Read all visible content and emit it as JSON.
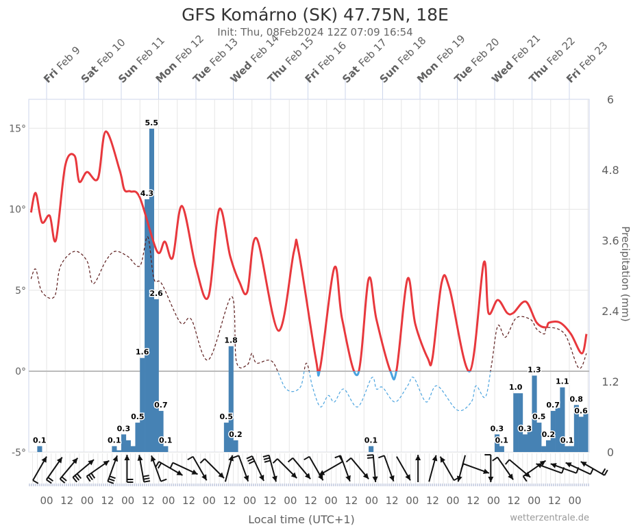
{
  "title": "GFS Komárno (SK) 47.75N, 18E",
  "subtitle": "Init: Thu, 08Feb2024 12Z 07:09 16:54",
  "credit": "wetterzentrale.de",
  "chart_data": {
    "type": "line",
    "xlabel": "Local time (UTC+1)",
    "top_axis_labels": [
      {
        "weekday": "Fri",
        "date": "Feb 9"
      },
      {
        "weekday": "Sat",
        "date": "Feb 10"
      },
      {
        "weekday": "Sun",
        "date": "Feb 11"
      },
      {
        "weekday": "Mon",
        "date": "Feb 12"
      },
      {
        "weekday": "Tue",
        "date": "Feb 13"
      },
      {
        "weekday": "Wed",
        "date": "Feb 14"
      },
      {
        "weekday": "Thu",
        "date": "Feb 15"
      },
      {
        "weekday": "Fri",
        "date": "Feb 16"
      },
      {
        "weekday": "Sat",
        "date": "Feb 17"
      },
      {
        "weekday": "Sun",
        "date": "Feb 18"
      },
      {
        "weekday": "Mon",
        "date": "Feb 19"
      },
      {
        "weekday": "Tue",
        "date": "Feb 20"
      },
      {
        "weekday": "Wed",
        "date": "Feb 21"
      },
      {
        "weekday": "Thu",
        "date": "Feb 22"
      },
      {
        "weekday": "Fri",
        "date": "Feb 23"
      }
    ],
    "bottom_tick_labels": [
      "00",
      "12",
      "00",
      "12",
      "00",
      "12",
      "00",
      "12",
      "00",
      "12",
      "00",
      "12",
      "00",
      "12",
      "00",
      "12",
      "00",
      "12",
      "00",
      "12",
      "00",
      "12",
      "00",
      "12",
      "00",
      "12",
      "00"
    ],
    "y_left": {
      "ticks": [
        "15°",
        "10°",
        "5°",
        "0°",
        "-5°"
      ],
      "values": [
        15,
        10,
        5,
        0,
        -5
      ],
      "range": [
        -5,
        16.8
      ]
    },
    "y_right": {
      "label": "Precipitation (mm)",
      "ticks": [
        "6",
        "4.8",
        "3.6",
        "2.4",
        "1.2",
        "0"
      ],
      "values": [
        6,
        4.8,
        3.6,
        2.4,
        1.2,
        0
      ],
      "range": [
        0,
        6
      ]
    },
    "grid": true,
    "colors": {
      "temperature": "#e8383d",
      "dewpoint": "#5a1a1a",
      "below_zero": "#4aa3df",
      "precipitation": "#4682b4"
    },
    "temperature": [
      [
        "2024-02-08T14",
        9.8
      ],
      [
        "2024-02-08T17",
        11.0
      ],
      [
        "2024-02-08T21",
        9.2
      ],
      [
        "2024-02-09T02",
        9.6
      ],
      [
        "2024-02-09T06",
        8.1
      ],
      [
        "2024-02-09T12",
        12.7
      ],
      [
        "2024-02-09T18",
        13.3
      ],
      [
        "2024-02-09T21",
        11.7
      ],
      [
        "2024-02-10T02",
        12.3
      ],
      [
        "2024-02-10T09",
        11.9
      ],
      [
        "2024-02-10T14",
        14.8
      ],
      [
        "2024-02-10T23",
        12.4
      ],
      [
        "2024-02-11T02",
        11.2
      ],
      [
        "2024-02-11T06",
        11.1
      ],
      [
        "2024-02-11T12",
        10.7
      ],
      [
        "2024-02-11T23",
        7.4
      ],
      [
        "2024-02-12T04",
        8.0
      ],
      [
        "2024-02-12T09",
        7.0
      ],
      [
        "2024-02-12T15",
        10.2
      ],
      [
        "2024-02-13T00",
        6.4
      ],
      [
        "2024-02-13T08",
        4.6
      ],
      [
        "2024-02-13T15",
        10.0
      ],
      [
        "2024-02-13T22",
        7.1
      ],
      [
        "2024-02-14T04",
        5.5
      ],
      [
        "2024-02-14T09",
        4.9
      ],
      [
        "2024-02-14T15",
        8.2
      ],
      [
        "2024-02-15T05",
        2.5
      ],
      [
        "2024-02-15T15",
        7.4
      ],
      [
        "2024-02-15T18",
        7.4
      ],
      [
        "2024-02-16T05",
        0.8
      ],
      [
        "2024-02-16T08",
        0.3
      ],
      [
        "2024-02-16T17",
        6.4
      ],
      [
        "2024-02-16T22",
        3.2
      ],
      [
        "2024-02-17T08",
        -0.2
      ],
      [
        "2024-02-17T15",
        5.7
      ],
      [
        "2024-02-17T20",
        3.2
      ],
      [
        "2024-02-18T05",
        0.0
      ],
      [
        "2024-02-18T09",
        0.1
      ],
      [
        "2024-02-18T16",
        5.7
      ],
      [
        "2024-02-18T21",
        2.9
      ],
      [
        "2024-02-19T05",
        0.8
      ],
      [
        "2024-02-19T08",
        0.8
      ],
      [
        "2024-02-19T14",
        5.5
      ],
      [
        "2024-02-19T19",
        5.1
      ],
      [
        "2024-02-20T08",
        0.0
      ],
      [
        "2024-02-20T17",
        6.7
      ],
      [
        "2024-02-20T20",
        3.6
      ],
      [
        "2024-02-21T02",
        4.4
      ],
      [
        "2024-02-21T08",
        3.6
      ],
      [
        "2024-02-21T12",
        3.6
      ],
      [
        "2024-02-21T20",
        4.3
      ],
      [
        "2024-02-22T03",
        3.0
      ],
      [
        "2024-02-22T09",
        2.7
      ],
      [
        "2024-02-22T11",
        3.0
      ],
      [
        "2024-02-22T18",
        3.0
      ],
      [
        "2024-02-23T01",
        2.3
      ],
      [
        "2024-02-23T08",
        1.1
      ],
      [
        "2024-02-23T11",
        2.3
      ]
    ],
    "dewpoint": [
      [
        "2024-02-08T14",
        5.7
      ],
      [
        "2024-02-08T17",
        6.3
      ],
      [
        "2024-02-08T21",
        4.9
      ],
      [
        "2024-02-09T05",
        4.6
      ],
      [
        "2024-02-09T09",
        6.5
      ],
      [
        "2024-02-09T18",
        7.4
      ],
      [
        "2024-02-10T02",
        6.8
      ],
      [
        "2024-02-10T06",
        5.4
      ],
      [
        "2024-02-10T14",
        6.8
      ],
      [
        "2024-02-10T20",
        7.4
      ],
      [
        "2024-02-11T04",
        7.1
      ],
      [
        "2024-02-11T12",
        6.5
      ],
      [
        "2024-02-11T17",
        8.3
      ],
      [
        "2024-02-11T21",
        5.7
      ],
      [
        "2024-02-12T02",
        5.4
      ],
      [
        "2024-02-12T14",
        3.0
      ],
      [
        "2024-02-12T21",
        3.2
      ],
      [
        "2024-02-13T08",
        0.7
      ],
      [
        "2024-02-13T23",
        4.6
      ],
      [
        "2024-02-14T02",
        0.6
      ],
      [
        "2024-02-14T09",
        0.4
      ],
      [
        "2024-02-14T12",
        1.1
      ],
      [
        "2024-02-14T15",
        0.5
      ],
      [
        "2024-02-15T01",
        0.6
      ],
      [
        "2024-02-15T10",
        -1.1
      ],
      [
        "2024-02-15T19",
        -1.0
      ],
      [
        "2024-02-15T23",
        0.5
      ],
      [
        "2024-02-16T03",
        -1.0
      ],
      [
        "2024-02-16T08",
        -2.2
      ],
      [
        "2024-02-16T13",
        -1.5
      ],
      [
        "2024-02-16T17",
        -1.9
      ],
      [
        "2024-02-16T23",
        -1.1
      ],
      [
        "2024-02-17T08",
        -2.2
      ],
      [
        "2024-02-17T17",
        -0.4
      ],
      [
        "2024-02-17T20",
        -1.1
      ],
      [
        "2024-02-18T00",
        -1.0
      ],
      [
        "2024-02-18T08",
        -1.9
      ],
      [
        "2024-02-18T16",
        -0.9
      ],
      [
        "2024-02-18T20",
        -0.4
      ],
      [
        "2024-02-19T04",
        -1.9
      ],
      [
        "2024-02-19T11",
        -0.9
      ],
      [
        "2024-02-20T00",
        -2.4
      ],
      [
        "2024-02-20T09",
        -1.9
      ],
      [
        "2024-02-20T12",
        -0.9
      ],
      [
        "2024-02-20T18",
        -1.6
      ],
      [
        "2024-02-20T22",
        0.4
      ],
      [
        "2024-02-21T02",
        2.8
      ],
      [
        "2024-02-21T07",
        2.1
      ],
      [
        "2024-02-21T14",
        3.3
      ],
      [
        "2024-02-21T23",
        3.2
      ],
      [
        "2024-02-22T03",
        2.6
      ],
      [
        "2024-02-22T08",
        2.3
      ],
      [
        "2024-02-22T10",
        2.7
      ],
      [
        "2024-02-22T21",
        2.3
      ],
      [
        "2024-02-23T06",
        0.2
      ],
      [
        "2024-02-23T11",
        1.1
      ]
    ],
    "precipitation": [
      {
        "t": "2024-02-08T18",
        "v": 0.1,
        "label": "0.1"
      },
      {
        "t": "2024-02-10T18",
        "v": 0.1,
        "label": "0.1"
      },
      {
        "t": "2024-02-10T21",
        "v": 0.03,
        "label": ""
      },
      {
        "t": "2024-02-11T00",
        "v": 0.3,
        "label": "0.3"
      },
      {
        "t": "2024-02-11T03",
        "v": 0.2,
        "label": ""
      },
      {
        "t": "2024-02-11T06",
        "v": 0.1,
        "label": ""
      },
      {
        "t": "2024-02-11T09",
        "v": 0.5,
        "label": "0.5"
      },
      {
        "t": "2024-02-11T12",
        "v": 1.6,
        "label": "1.6"
      },
      {
        "t": "2024-02-11T15",
        "v": 4.3,
        "label": "4.3"
      },
      {
        "t": "2024-02-11T18",
        "v": 5.5,
        "label": "5.5"
      },
      {
        "t": "2024-02-11T21",
        "v": 2.6,
        "label": "2.6"
      },
      {
        "t": "2024-02-12T00",
        "v": 0.7,
        "label": "0.7"
      },
      {
        "t": "2024-02-12T03",
        "v": 0.1,
        "label": "0.1"
      },
      {
        "t": "2024-02-13T18",
        "v": 0.5,
        "label": "0.5"
      },
      {
        "t": "2024-02-13T21",
        "v": 1.8,
        "label": "1.8"
      },
      {
        "t": "2024-02-14T00",
        "v": 0.2,
        "label": "0.2"
      },
      {
        "t": "2024-02-17T15",
        "v": 0.1,
        "label": "0.1"
      },
      {
        "t": "2024-02-21T00",
        "v": 0.3,
        "label": "0.3"
      },
      {
        "t": "2024-02-21T03",
        "v": 0.1,
        "label": "0.1"
      },
      {
        "t": "2024-02-21T12",
        "v": 1.0,
        "label": "1.0"
      },
      {
        "t": "2024-02-21T15",
        "v": 1.0,
        "label": ""
      },
      {
        "t": "2024-02-21T18",
        "v": 0.3,
        "label": "0.3"
      },
      {
        "t": "2024-02-21T21",
        "v": 0.35,
        "label": ""
      },
      {
        "t": "2024-02-22T00",
        "v": 1.3,
        "label": "1.3"
      },
      {
        "t": "2024-02-22T03",
        "v": 0.5,
        "label": "0.5"
      },
      {
        "t": "2024-02-22T06",
        "v": 0.1,
        "label": ""
      },
      {
        "t": "2024-02-22T09",
        "v": 0.2,
        "label": "0.2"
      },
      {
        "t": "2024-02-22T12",
        "v": 0.7,
        "label": "0.7"
      },
      {
        "t": "2024-02-22T15",
        "v": 0.75,
        "label": ""
      },
      {
        "t": "2024-02-22T18",
        "v": 1.1,
        "label": "1.1"
      },
      {
        "t": "2024-02-22T21",
        "v": 0.1,
        "label": "0.1"
      },
      {
        "t": "2024-02-23T00",
        "v": 0.1,
        "label": ""
      },
      {
        "t": "2024-02-23T03",
        "v": 0.8,
        "label": "0.8"
      },
      {
        "t": "2024-02-23T06",
        "v": 0.6,
        "label": "0.6"
      },
      {
        "t": "2024-02-23T09",
        "v": 0.65,
        "label": ""
      }
    ],
    "wind_barbs": [
      {
        "dir": 30,
        "barbs": 1
      },
      {
        "dir": 35,
        "barbs": 2
      },
      {
        "dir": 40,
        "barbs": 2
      },
      {
        "dir": 50,
        "barbs": 3
      },
      {
        "dir": 55,
        "barbs": 3
      },
      {
        "dir": 20,
        "barbs": 3
      },
      {
        "dir": 0,
        "barbs": 2
      },
      {
        "dir": -10,
        "barbs": 3
      },
      {
        "dir": -20,
        "barbs": 1
      },
      {
        "dir": 120,
        "barbs": 2
      },
      {
        "dir": 115,
        "barbs": 1
      },
      {
        "dir": 150,
        "barbs": 1
      },
      {
        "dir": 135,
        "barbs": 1
      },
      {
        "dir": 15,
        "barbs": 0
      },
      {
        "dir": 160,
        "barbs": 1
      },
      {
        "dir": 155,
        "barbs": 3
      },
      {
        "dir": 165,
        "barbs": 3
      },
      {
        "dir": 135,
        "barbs": 1
      },
      {
        "dir": 140,
        "barbs": 1
      },
      {
        "dir": 150,
        "barbs": 1
      },
      {
        "dir": 240,
        "barbs": 1
      },
      {
        "dir": 160,
        "barbs": 1
      },
      {
        "dir": 140,
        "barbs": 1
      },
      {
        "dir": 175,
        "barbs": 2
      },
      {
        "dir": 160,
        "barbs": 1
      },
      {
        "dir": 150,
        "barbs": 0
      },
      {
        "dir": 0,
        "barbs": 0
      },
      {
        "dir": 15,
        "barbs": 0
      },
      {
        "dir": -30,
        "barbs": 1
      },
      {
        "dir": 195,
        "barbs": 0
      },
      {
        "dir": 110,
        "barbs": 1
      },
      {
        "dir": 180,
        "barbs": 1
      },
      {
        "dir": 145,
        "barbs": 1
      },
      {
        "dir": 130,
        "barbs": 1
      },
      {
        "dir": 55,
        "barbs": 1
      },
      {
        "dir": -70,
        "barbs": 1
      },
      {
        "dir": -70,
        "barbs": 1
      },
      {
        "dir": -65,
        "barbs": 1
      },
      {
        "dir": -60,
        "barbs": 2
      }
    ]
  }
}
